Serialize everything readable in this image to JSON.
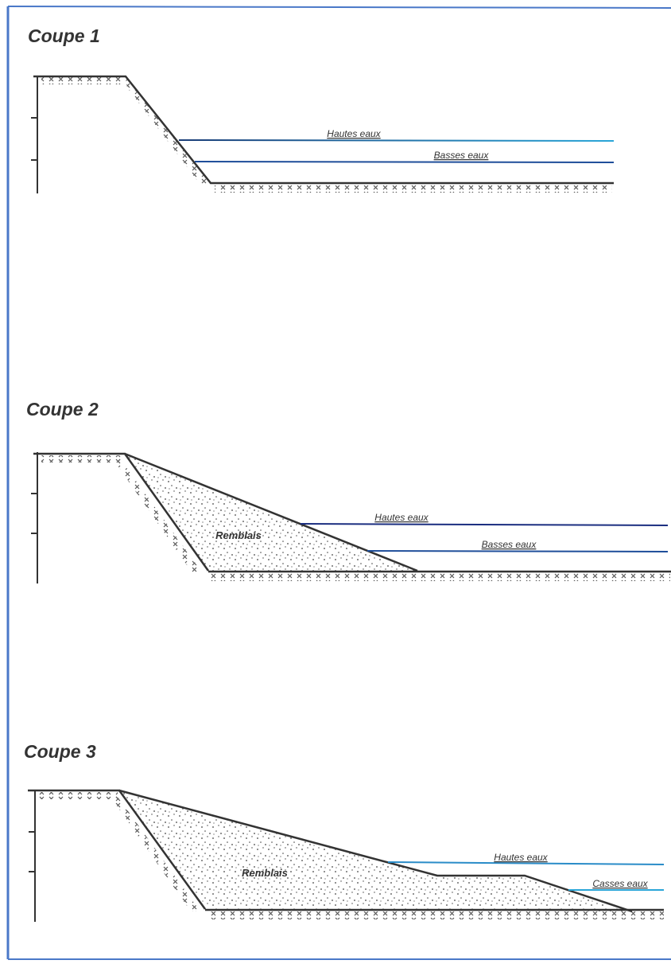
{
  "sections": [
    {
      "title": "Coupe 1",
      "high_water": "Hautes eaux",
      "low_water": "Basses eaux"
    },
    {
      "title": "Coupe 2",
      "high_water": "Hautes eaux",
      "low_water": "Basses eaux",
      "fill": "Remblais"
    },
    {
      "title": "Coupe 3",
      "high_water": "Hautes eaux",
      "low_water": "Casses eaux",
      "fill": "Remblais"
    }
  ]
}
